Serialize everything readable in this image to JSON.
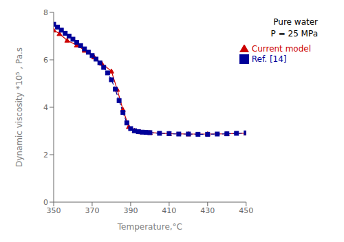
{
  "chart_data": {
    "type": "line",
    "xlabel": "Temperature,°C",
    "ylabel": "Dynamic viscosity *10⁵ , Pa.s",
    "xlim": [
      350,
      450
    ],
    "ylim": [
      0,
      8
    ],
    "xticks": [
      350,
      370,
      390,
      410,
      430,
      450
    ],
    "yticks": [
      0,
      2,
      4,
      6,
      8
    ],
    "grid": false,
    "legend": "upper right",
    "annotations": [
      "Pure water",
      "P = 25 MPa"
    ],
    "series": [
      {
        "name": "Current model",
        "color": "#cc0000",
        "marker": "triangle",
        "line_style": "solid",
        "x": [
          350,
          353,
          357,
          362,
          366,
          371,
          375,
          380,
          383,
          386,
          389,
          392,
          395,
          400,
          410,
          420,
          430,
          440,
          450
        ],
        "values": [
          7.25,
          7.1,
          6.82,
          6.62,
          6.4,
          6.12,
          5.85,
          5.52,
          4.75,
          3.9,
          3.18,
          3.02,
          2.96,
          2.93,
          2.89,
          2.87,
          2.87,
          2.88,
          2.91
        ]
      },
      {
        "name": "Ref. [14]",
        "color": "#000099",
        "marker": "square",
        "line_style": "dashed",
        "x": [
          350,
          352,
          354,
          356,
          358,
          360,
          362,
          364,
          366,
          368,
          370,
          372,
          374,
          376,
          378,
          380,
          382,
          384,
          386,
          388,
          390,
          392,
          394,
          396,
          398,
          400,
          405,
          410,
          415,
          420,
          425,
          430,
          435,
          440,
          445,
          450
        ],
        "values": [
          7.5,
          7.38,
          7.25,
          7.12,
          7.0,
          6.87,
          6.74,
          6.6,
          6.46,
          6.32,
          6.18,
          6.03,
          5.87,
          5.68,
          5.45,
          5.16,
          4.76,
          4.28,
          3.78,
          3.34,
          3.1,
          3.01,
          2.97,
          2.95,
          2.94,
          2.93,
          2.9,
          2.89,
          2.87,
          2.87,
          2.86,
          2.86,
          2.87,
          2.88,
          2.9,
          2.92
        ]
      }
    ]
  }
}
